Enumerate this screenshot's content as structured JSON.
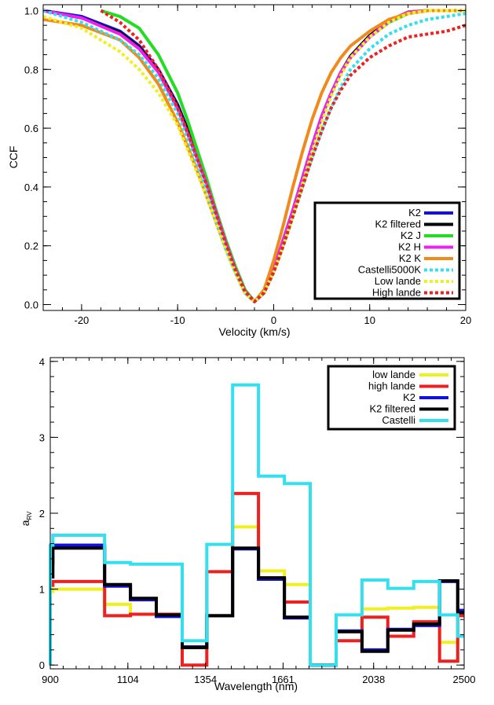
{
  "chart_data": [
    {
      "type": "line",
      "title": "",
      "xlabel": "Velocity (km/s)",
      "ylabel": "CCF",
      "xlim": [
        -24,
        20
      ],
      "ylim": [
        -0.02,
        1.02
      ],
      "x_ticks": [
        "-20",
        "-10",
        "0",
        "10",
        "20"
      ],
      "y_ticks": [
        "0.0",
        "0.2",
        "0.4",
        "0.6",
        "0.8",
        "1.0"
      ],
      "legend_position": "lower-right",
      "series": [
        {
          "name": "K2",
          "color": "#1010e0",
          "dashed": false,
          "x": [
            -24,
            -20,
            -16,
            -14,
            -12,
            -10,
            -9,
            -8,
            -7,
            -6,
            -5,
            -4,
            -3,
            -2,
            -1,
            0,
            1,
            2,
            3,
            4,
            5,
            6,
            7,
            8,
            10,
            12,
            14,
            16,
            18,
            20
          ],
          "y": [
            1.0,
            0.98,
            0.93,
            0.88,
            0.8,
            0.68,
            0.6,
            0.51,
            0.42,
            0.32,
            0.22,
            0.13,
            0.05,
            0.01,
            0.04,
            0.12,
            0.22,
            0.32,
            0.43,
            0.54,
            0.64,
            0.72,
            0.79,
            0.84,
            0.91,
            0.96,
            0.99,
            1.0,
            1.0,
            1.0
          ]
        },
        {
          "name": "K2 filtered",
          "color": "#000000",
          "dashed": false,
          "x": [
            -24,
            -20,
            -16,
            -14,
            -12,
            -10,
            -9,
            -8,
            -7,
            -6,
            -5,
            -4,
            -3,
            -2,
            -1,
            0,
            1,
            2,
            3,
            4,
            5,
            6,
            7,
            8,
            10,
            12,
            14,
            16,
            18,
            20
          ],
          "y": [
            1.0,
            0.975,
            0.925,
            0.875,
            0.795,
            0.675,
            0.595,
            0.505,
            0.415,
            0.315,
            0.215,
            0.125,
            0.045,
            0.01,
            0.04,
            0.12,
            0.22,
            0.32,
            0.43,
            0.54,
            0.64,
            0.72,
            0.79,
            0.845,
            0.915,
            0.965,
            0.995,
            1.0,
            1.0,
            1.0
          ]
        },
        {
          "name": "K2 J",
          "color": "#22dd22",
          "dashed": false,
          "x": [
            -18,
            -16,
            -14,
            -12,
            -10,
            -9,
            -8,
            -7,
            -6,
            -5,
            -4,
            -3,
            -2,
            -1,
            0,
            1,
            2,
            3,
            4,
            5,
            6,
            7,
            8,
            10,
            12,
            14,
            16,
            18,
            20
          ],
          "y": [
            1.0,
            0.98,
            0.94,
            0.85,
            0.72,
            0.63,
            0.53,
            0.43,
            0.32,
            0.22,
            0.13,
            0.05,
            0.01,
            0.04,
            0.12,
            0.22,
            0.32,
            0.43,
            0.54,
            0.64,
            0.72,
            0.79,
            0.84,
            0.91,
            0.96,
            0.99,
            1.0,
            1.0,
            1.0
          ]
        },
        {
          "name": "K2 H",
          "color": "#ee22ee",
          "dashed": false,
          "x": [
            -24,
            -20,
            -16,
            -14,
            -12,
            -10,
            -9,
            -8,
            -7,
            -6,
            -5,
            -4,
            -3,
            -2,
            -1,
            0,
            1,
            2,
            3,
            4,
            5,
            6,
            7,
            8,
            10,
            12,
            14,
            16,
            18,
            20
          ],
          "y": [
            1.0,
            0.975,
            0.92,
            0.87,
            0.79,
            0.665,
            0.585,
            0.5,
            0.41,
            0.31,
            0.21,
            0.12,
            0.045,
            0.01,
            0.04,
            0.12,
            0.22,
            0.32,
            0.43,
            0.54,
            0.64,
            0.72,
            0.79,
            0.84,
            0.91,
            0.965,
            0.995,
            1.0,
            1.0,
            1.0
          ]
        },
        {
          "name": "K2 K",
          "color": "#f08a1c",
          "dashed": false,
          "x": [
            -24,
            -20,
            -16,
            -14,
            -12,
            -10,
            -9,
            -8,
            -7,
            -6,
            -5,
            -4,
            -3,
            -2,
            -1,
            0,
            1,
            2,
            3,
            4,
            5,
            6,
            7,
            8,
            10,
            12,
            14,
            16,
            18,
            20
          ],
          "y": [
            0.97,
            0.95,
            0.9,
            0.84,
            0.75,
            0.62,
            0.54,
            0.46,
            0.37,
            0.28,
            0.19,
            0.11,
            0.04,
            0.01,
            0.05,
            0.15,
            0.27,
            0.4,
            0.52,
            0.63,
            0.72,
            0.79,
            0.84,
            0.88,
            0.93,
            0.97,
            0.99,
            1.0,
            1.0,
            1.0
          ]
        },
        {
          "name": "Castelli5000K",
          "color": "#33e0f0",
          "dashed": true,
          "x": [
            -24,
            -20,
            -16,
            -14,
            -12,
            -10,
            -9,
            -8,
            -7,
            -6,
            -5,
            -4,
            -3,
            -2,
            -1,
            0,
            1,
            2,
            3,
            4,
            5,
            6,
            7,
            8,
            10,
            12,
            14,
            16,
            18,
            20
          ],
          "y": [
            1.0,
            0.96,
            0.9,
            0.85,
            0.77,
            0.65,
            0.57,
            0.48,
            0.39,
            0.29,
            0.19,
            0.11,
            0.04,
            0.01,
            0.04,
            0.11,
            0.2,
            0.3,
            0.4,
            0.5,
            0.59,
            0.67,
            0.74,
            0.8,
            0.87,
            0.92,
            0.95,
            0.97,
            0.98,
            0.99
          ]
        },
        {
          "name": "Low lande",
          "color": "#f0f020",
          "dashed": true,
          "x": [
            -24,
            -20,
            -16,
            -14,
            -12,
            -10,
            -9,
            -8,
            -7,
            -6,
            -5,
            -4,
            -3,
            -2,
            -1,
            0,
            1,
            2,
            3,
            4,
            5,
            6,
            7,
            8,
            10,
            12,
            14,
            16,
            18,
            20
          ],
          "y": [
            0.98,
            0.94,
            0.86,
            0.8,
            0.72,
            0.61,
            0.53,
            0.45,
            0.37,
            0.28,
            0.19,
            0.11,
            0.04,
            0.01,
            0.04,
            0.11,
            0.2,
            0.3,
            0.41,
            0.52,
            0.62,
            0.71,
            0.78,
            0.84,
            0.91,
            0.96,
            0.99,
            1.0,
            1.0,
            1.0
          ]
        },
        {
          "name": "High lande",
          "color": "#ee2020",
          "dashed": true,
          "x": [
            -18,
            -16,
            -14,
            -12,
            -10,
            -9,
            -8,
            -7,
            -6,
            -5,
            -4,
            -3,
            -2,
            -1,
            0,
            1,
            2,
            3,
            4,
            5,
            6,
            7,
            8,
            10,
            12,
            14,
            16,
            18,
            20
          ],
          "y": [
            1.0,
            0.96,
            0.9,
            0.8,
            0.67,
            0.59,
            0.5,
            0.41,
            0.31,
            0.21,
            0.12,
            0.045,
            0.01,
            0.04,
            0.11,
            0.2,
            0.3,
            0.4,
            0.5,
            0.59,
            0.67,
            0.73,
            0.78,
            0.84,
            0.88,
            0.91,
            0.92,
            0.93,
            0.95
          ]
        }
      ]
    },
    {
      "type": "line",
      "title": "",
      "xlabel": "Wavelength (nm)",
      "ylabel": "a",
      "ylabel_sub": "RV",
      "steps": true,
      "xlim": [
        0,
        16
      ],
      "ylim": [
        -0.05,
        4.05
      ],
      "x_ticks": [
        {
          "pos": 0,
          "label": "900"
        },
        {
          "pos": 3,
          "label": "1104"
        },
        {
          "pos": 6,
          "label": "1354"
        },
        {
          "pos": 9,
          "label": "1661"
        },
        {
          "pos": 12.5,
          "label": "2038"
        },
        {
          "pos": 16,
          "label": "2500"
        }
      ],
      "y_ticks": [
        "0",
        "1",
        "2",
        "3",
        "4"
      ],
      "legend_position": "top-right",
      "series": [
        {
          "name": "low lande",
          "color": "#f0f020",
          "values": [
            0.97,
            1.0,
            1.0,
            0.8,
            0.67,
            0.67,
            0.23,
            0.65,
            1.82,
            1.24,
            1.06,
            0.0,
            0.44,
            0.74,
            0.75,
            0.76,
            0.3,
            0.68
          ]
        },
        {
          "name": "high lande",
          "color": "#ee2020",
          "values": [
            1.05,
            1.1,
            1.1,
            0.65,
            0.67,
            0.67,
            0.0,
            1.23,
            2.26,
            1.13,
            0.83,
            0.0,
            0.32,
            0.63,
            0.38,
            0.57,
            0.05,
            0.65
          ]
        },
        {
          "name": "K2",
          "color": "#1010e0",
          "values": [
            1.34,
            1.58,
            1.58,
            1.04,
            0.86,
            0.64,
            0.24,
            0.65,
            1.53,
            1.13,
            0.62,
            0.0,
            0.45,
            0.2,
            0.47,
            0.52,
            1.1,
            0.72
          ]
        },
        {
          "name": "K2 filtered",
          "color": "#000000",
          "values": [
            1.16,
            1.54,
            1.54,
            1.06,
            0.88,
            0.66,
            0.23,
            0.65,
            1.54,
            1.15,
            0.63,
            0.0,
            0.44,
            0.18,
            0.46,
            0.54,
            1.11,
            0.69
          ]
        },
        {
          "name": "Castelli",
          "color": "#33e0f0",
          "values": [
            1.58,
            1.71,
            1.71,
            1.35,
            1.33,
            1.33,
            0.32,
            1.59,
            3.69,
            2.49,
            2.39,
            0.0,
            0.66,
            1.12,
            1.01,
            1.1,
            0.66,
            0.38
          ]
        }
      ]
    }
  ]
}
